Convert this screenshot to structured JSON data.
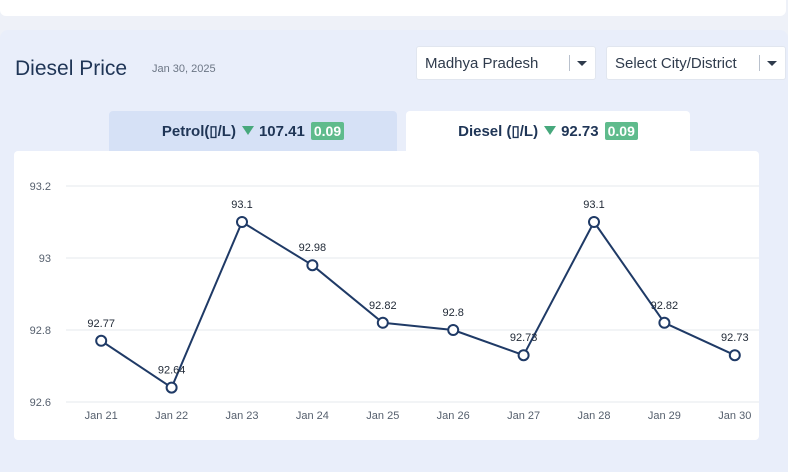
{
  "header": {
    "title": "Diesel Price",
    "date": "Jan 30, 2025"
  },
  "filters": {
    "state": "Madhya Pradesh",
    "city_placeholder": "Select City/District"
  },
  "tabs": [
    {
      "label": "Petrol(▯/L)",
      "price": "107.41",
      "change": "0.09",
      "trend": "down",
      "active": false
    },
    {
      "label": "Diesel (▯/L)",
      "price": "92.73",
      "change": "0.09",
      "trend": "down",
      "active": true
    }
  ],
  "colors": {
    "line": "#1f3a66",
    "change_badge": "#5fbb8c",
    "active_tab": "#ffffff",
    "inactive_tab": "#d6e1f6"
  },
  "chart_data": {
    "type": "line",
    "categories": [
      "Jan 21",
      "Jan 22",
      "Jan 23",
      "Jan 24",
      "Jan 25",
      "Jan 26",
      "Jan 27",
      "Jan 28",
      "Jan 29",
      "Jan 30"
    ],
    "values": [
      92.77,
      92.64,
      93.1,
      92.98,
      92.82,
      92.8,
      92.73,
      93.1,
      92.82,
      92.73
    ],
    "data_labels": [
      "92.77",
      "92.64",
      "93.1",
      "92.98",
      "92.82",
      "92.8",
      "92.73",
      "93.1",
      "92.82",
      "92.73"
    ],
    "yticks": [
      "92.6",
      "92.8",
      "93",
      "93.2"
    ],
    "ylim": [
      92.6,
      93.2
    ],
    "grid": true,
    "legend": "none"
  }
}
